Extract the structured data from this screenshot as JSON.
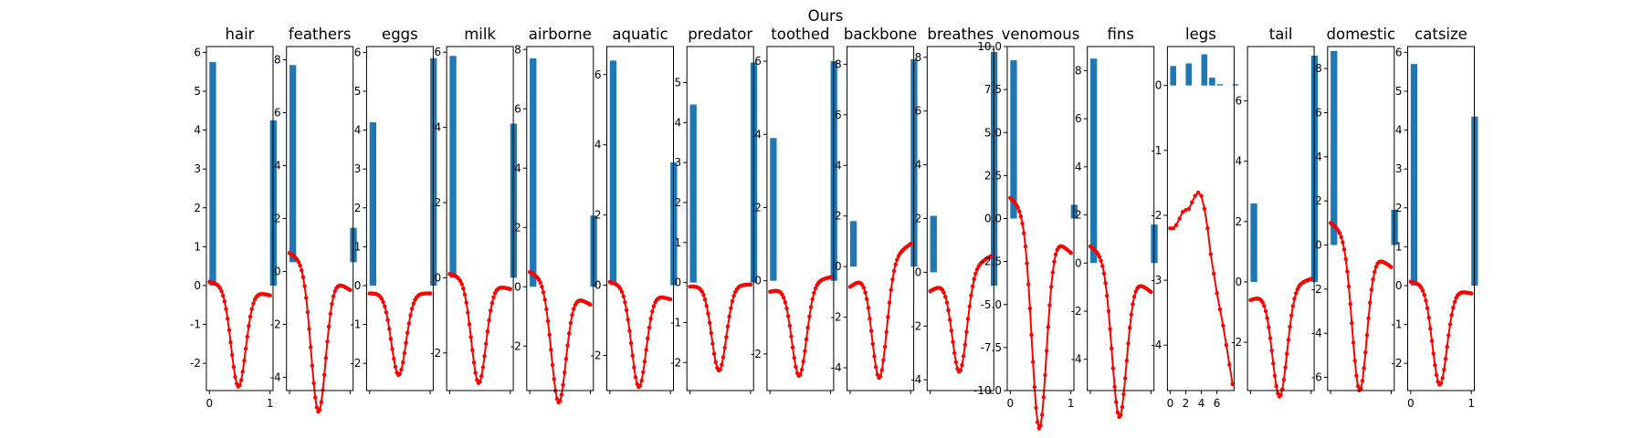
{
  "chart_data": {
    "type": "bar",
    "title": "Ours",
    "series_colors": {
      "bars": "#1f77b4",
      "curve": "#ff0000"
    },
    "grid": false,
    "panels": [
      {
        "title": "hair",
        "ylim": [
          -2.7,
          6.15
        ],
        "yticks": [
          -2,
          -1,
          0,
          1,
          2,
          3,
          4,
          5,
          6
        ],
        "xlim": [
          -0.05,
          1.05
        ],
        "xticks": [
          0,
          1
        ],
        "bars": [
          {
            "x": 0,
            "bottom": 0,
            "height": 5.75
          },
          {
            "x": 1,
            "bottom": 0,
            "height": 4.25
          }
        ],
        "curve": {
          "base": 0.1,
          "depth": 2.35,
          "end": -0.25
        }
      },
      {
        "title": "feathers",
        "ylim": [
          -4.5,
          8.5
        ],
        "yticks": [
          -4,
          -2,
          0,
          2,
          4,
          6,
          8
        ],
        "xlim": [
          -0.05,
          1.05
        ],
        "xticks": [],
        "bars": [
          {
            "x": 0,
            "bottom": 0.35,
            "height": 7.45
          },
          {
            "x": 1,
            "bottom": 0.35,
            "height": 1.3
          }
        ],
        "curve": {
          "base": 0.7,
          "depth": 4.6,
          "end": -0.7
        }
      },
      {
        "title": "eggs",
        "ylim": [
          -2.7,
          6.15
        ],
        "yticks": [
          -2,
          -1,
          0,
          1,
          2,
          3,
          4,
          5,
          6
        ],
        "xlim": [
          -0.05,
          1.05
        ],
        "xticks": [],
        "bars": [
          {
            "x": 0,
            "bottom": 0,
            "height": 4.2
          },
          {
            "x": 1,
            "bottom": 0,
            "height": 5.85
          }
        ],
        "curve": {
          "base": -0.2,
          "depth": 2.1,
          "end": -0.2
        }
      },
      {
        "title": "milk",
        "ylim": [
          -3.0,
          6.15
        ],
        "yticks": [
          -2,
          0,
          2,
          4,
          6
        ],
        "xlim": [
          -0.05,
          1.05
        ],
        "xticks": [],
        "bars": [
          {
            "x": 0,
            "bottom": 0,
            "height": 5.9
          },
          {
            "x": 1,
            "bottom": 0,
            "height": 4.1
          }
        ],
        "curve": {
          "base": 0.1,
          "depth": 2.5,
          "end": -0.3
        }
      },
      {
        "title": "airborne",
        "ylim": [
          -3.5,
          8.1
        ],
        "yticks": [
          -2,
          0,
          2,
          4,
          6,
          8
        ],
        "xlim": [
          -0.05,
          1.05
        ],
        "xticks": [],
        "bars": [
          {
            "x": 0,
            "bottom": 0,
            "height": 7.7
          },
          {
            "x": 1,
            "bottom": 0,
            "height": 2.4
          }
        ],
        "curve": {
          "base": 0.5,
          "depth": 3.3,
          "end": -0.6
        }
      },
      {
        "title": "aquatic",
        "ylim": [
          -3.0,
          6.8
        ],
        "yticks": [
          -2,
          0,
          2,
          4,
          6
        ],
        "xlim": [
          -0.05,
          1.05
        ],
        "xticks": [],
        "bars": [
          {
            "x": 0,
            "bottom": 0,
            "height": 6.4
          },
          {
            "x": 1,
            "bottom": 0,
            "height": 3.5
          }
        ],
        "curve": {
          "base": 0.1,
          "depth": 2.5,
          "end": -0.4
        }
      },
      {
        "title": "predator",
        "ylim": [
          -2.7,
          5.9
        ],
        "yticks": [
          -2,
          -1,
          0,
          1,
          2,
          3,
          4,
          5
        ],
        "xlim": [
          -0.05,
          1.05
        ],
        "xticks": [],
        "bars": [
          {
            "x": 0,
            "bottom": 0,
            "height": 4.45
          },
          {
            "x": 1,
            "bottom": 0,
            "height": 5.5
          }
        ],
        "curve": {
          "base": -0.1,
          "depth": 2.1,
          "end": -0.05
        }
      },
      {
        "title": "toothed",
        "ylim": [
          -3.0,
          6.4
        ],
        "yticks": [
          -2,
          0,
          2,
          4,
          6
        ],
        "xlim": [
          -0.05,
          1.05
        ],
        "xticks": [],
        "bars": [
          {
            "x": 0,
            "bottom": 0,
            "height": 3.9
          },
          {
            "x": 1,
            "bottom": 0,
            "height": 6.0
          }
        ],
        "curve": {
          "base": -0.3,
          "depth": 2.3,
          "end": 0.1
        }
      },
      {
        "title": "backbone",
        "ylim": [
          -4.9,
          8.7
        ],
        "yticks": [
          -4,
          -2,
          0,
          2,
          4,
          6,
          8
        ],
        "xlim": [
          -0.05,
          1.05
        ],
        "xticks": [],
        "bars": [
          {
            "x": 0,
            "bottom": 0,
            "height": 1.8
          },
          {
            "x": 1,
            "bottom": 0,
            "height": 8.2
          }
        ],
        "curve": {
          "base": -0.8,
          "depth": 3.6,
          "end": 0.9
        }
      },
      {
        "title": "breathes",
        "ylim": [
          -4.4,
          8.4
        ],
        "yticks": [
          -4,
          -2,
          0,
          2,
          4,
          6,
          8
        ],
        "xlim": [
          -0.05,
          1.05
        ],
        "xticks": [],
        "bars": [
          {
            "x": 0,
            "bottom": 0,
            "height": 2.1
          },
          {
            "x": 1,
            "bottom": -0.5,
            "height": 8.7
          }
        ],
        "curve": {
          "base": -0.7,
          "depth": 3.0,
          "end": 0.6
        }
      },
      {
        "title": "venomous",
        "ylim": [
          -10.0,
          10.0
        ],
        "yticks": [
          -10.0,
          -7.5,
          -5.0,
          -2.5,
          0.0,
          2.5,
          5.0,
          7.5,
          10.0
        ],
        "xlim": [
          -0.05,
          1.05
        ],
        "xticks": [
          0,
          1
        ],
        "bars": [
          {
            "x": 0,
            "bottom": 0,
            "height": 9.2
          },
          {
            "x": 1,
            "bottom": 0,
            "height": 0.8
          }
        ],
        "curve": {
          "base": 1.2,
          "depth": 10.2,
          "end": -2.0
        }
      },
      {
        "title": "fins",
        "ylim": [
          -5.3,
          9.0
        ],
        "yticks": [
          -4,
          -2,
          0,
          2,
          4,
          6,
          8
        ],
        "xlim": [
          -0.05,
          1.05
        ],
        "xticks": [],
        "bars": [
          {
            "x": 0,
            "bottom": 0,
            "height": 8.5
          },
          {
            "x": 1,
            "bottom": 0,
            "height": 1.6
          }
        ],
        "curve": {
          "base": 0.7,
          "depth": 5.2,
          "end": -1.2
        }
      },
      {
        "title": "legs",
        "ylim": [
          -4.7,
          0.6
        ],
        "yticks": [
          -4,
          -3,
          -2,
          -1,
          0
        ],
        "xlim": [
          -0.35,
          8.2
        ],
        "xticks": [
          0,
          2,
          4,
          6
        ],
        "bars": [
          {
            "x": 0,
            "bottom": 0,
            "height": 0.3
          },
          {
            "x": 2,
            "bottom": 0,
            "height": 0.34
          },
          {
            "x": 4,
            "bottom": 0,
            "height": 0.48
          },
          {
            "x": 5,
            "bottom": 0,
            "height": 0.12
          },
          {
            "x": 6,
            "bottom": 0,
            "height": 0.02
          },
          {
            "x": 8,
            "bottom": 0,
            "height": 0.02
          }
        ],
        "curve_points": [
          [
            0,
            -2.2
          ],
          [
            0.4,
            -2.2
          ],
          [
            0.8,
            -2.15
          ],
          [
            1.2,
            -2.05
          ],
          [
            1.6,
            -1.95
          ],
          [
            2.0,
            -1.92
          ],
          [
            2.4,
            -1.9
          ],
          [
            2.8,
            -1.8
          ],
          [
            3.2,
            -1.7
          ],
          [
            3.6,
            -1.65
          ],
          [
            4.0,
            -1.7
          ],
          [
            4.4,
            -1.9
          ],
          [
            4.8,
            -2.2
          ],
          [
            5.2,
            -2.6
          ],
          [
            5.6,
            -2.9
          ],
          [
            6.0,
            -3.2
          ],
          [
            6.4,
            -3.45
          ],
          [
            6.8,
            -3.7
          ],
          [
            7.2,
            -4.0
          ],
          [
            7.6,
            -4.3
          ],
          [
            8.0,
            -4.6
          ]
        ]
      },
      {
        "title": "tail",
        "ylim": [
          -3.6,
          7.8
        ],
        "yticks": [
          -2,
          0,
          2,
          4,
          6
        ],
        "xlim": [
          -0.05,
          1.05
        ],
        "xticks": [],
        "bars": [
          {
            "x": 0,
            "bottom": 0,
            "height": 2.6
          },
          {
            "x": 1,
            "bottom": 0,
            "height": 7.5
          }
        ],
        "curve": {
          "base": -0.6,
          "depth": 3.2,
          "end": 0.1
        }
      },
      {
        "title": "domestic",
        "ylim": [
          -6.6,
          9.0
        ],
        "yticks": [
          -6,
          -4,
          -2,
          0,
          2,
          4,
          6,
          8
        ],
        "xlim": [
          -0.05,
          1.05
        ],
        "xticks": [],
        "bars": [
          {
            "x": 0,
            "bottom": 0,
            "height": 8.8
          },
          {
            "x": 1,
            "bottom": 0,
            "height": 1.6
          }
        ],
        "curve": {
          "base": 1.0,
          "depth": 5.6,
          "end": -1.0
        }
      },
      {
        "title": "catsize",
        "ylim": [
          -2.7,
          6.15
        ],
        "yticks": [
          -2,
          -1,
          0,
          1,
          2,
          3,
          4,
          5,
          6
        ],
        "xlim": [
          -0.05,
          1.05
        ],
        "xticks": [
          0,
          1
        ],
        "bars": [
          {
            "x": 0,
            "bottom": 0,
            "height": 5.7
          },
          {
            "x": 1,
            "bottom": 0,
            "height": 4.35
          }
        ],
        "curve": {
          "base": 0.1,
          "depth": 2.35,
          "end": -0.2
        }
      }
    ]
  }
}
